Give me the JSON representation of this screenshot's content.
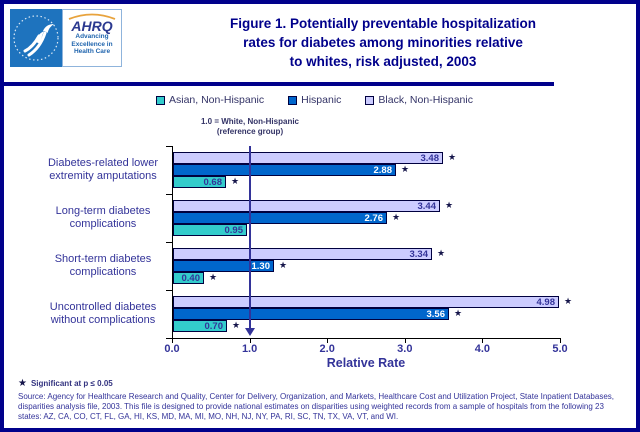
{
  "colors": {
    "navy": "#00008B",
    "text_navy": "#333399",
    "reference_line": "#333399",
    "star": "#15154A",
    "bar_border": "#00003F",
    "hhs_blue": "#1E73BE",
    "arc_orange": "#E8A33D"
  },
  "header": {
    "title_lines": [
      "Figure 1. Potentially preventable hospitalization",
      "rates for diabetes among minorities relative",
      "to whites, risk adjusted, 2003"
    ],
    "logo": {
      "ahrq": "AHRQ",
      "tagline_lines": [
        "Advancing",
        "Excellence in",
        "Health Care"
      ]
    }
  },
  "legend": [
    {
      "label": "Asian, Non-Hispanic",
      "color": "#33CCCC"
    },
    {
      "label": "Hispanic",
      "color": "#0066CC"
    },
    {
      "label": "Black, Non-Hispanic",
      "color": "#CCCCFF"
    }
  ],
  "annotation": {
    "line1": "1.0 = White, Non-Hispanic",
    "line2": "(reference group)"
  },
  "chart_data": {
    "type": "bar",
    "orientation": "horizontal",
    "title": "Figure 1. Potentially preventable hospitalization rates for diabetes among minorities relative to whites, risk adjusted, 2003",
    "xlabel": "Relative Rate",
    "xlim": [
      0.0,
      5.0
    ],
    "xticks": [
      "0.0",
      "1.0",
      "2.0",
      "3.0",
      "4.0",
      "5.0"
    ],
    "grid": false,
    "legend_position": "top",
    "reference_line": {
      "value": 1.0,
      "label": "1.0 = White, Non-Hispanic (reference group)"
    },
    "categories": [
      {
        "lines": [
          "Diabetes-related lower",
          "extremity amputations"
        ]
      },
      {
        "lines": [
          "Long-term diabetes",
          "complications"
        ]
      },
      {
        "lines": [
          "Short-term diabetes",
          "complications"
        ]
      },
      {
        "lines": [
          "Uncontrolled diabetes",
          "without complications"
        ]
      }
    ],
    "series": [
      {
        "name": "Black, Non-Hispanic",
        "color": "#CCCCFF",
        "value_color": "#333399",
        "values": [
          3.48,
          3.44,
          3.34,
          4.98
        ],
        "significant": [
          true,
          true,
          true,
          true
        ]
      },
      {
        "name": "Hispanic",
        "color": "#0066CC",
        "value_color": "#FFFFFF",
        "values": [
          2.88,
          2.76,
          1.3,
          3.56
        ],
        "significant": [
          true,
          true,
          true,
          true
        ]
      },
      {
        "name": "Asian, Non-Hispanic",
        "color": "#33CCCC",
        "value_color": "#333399",
        "values": [
          0.68,
          0.95,
          0.4,
          0.7
        ],
        "significant": [
          true,
          false,
          true,
          true
        ]
      }
    ],
    "significance_marker": "★"
  },
  "footnotes": {
    "significance": {
      "marker": "★",
      "text": "Significant at p ≤ 0.05"
    },
    "source": "Source: Agency for Healthcare Research and Quality, Center for Delivery, Organization, and Markets, Healthcare Cost and Utilization Project, State Inpatient Databases, disparities analysis file, 2003. This file is designed to provide national estimates on disparities using weighted records from a sample of hospitals from the following 23 states: AZ, CA, CO, CT, FL, GA, HI, KS, MD, MA, MI, MO, NH, NJ, NY, PA, RI, SC, TN, TX, VA, VT, and WI."
  }
}
